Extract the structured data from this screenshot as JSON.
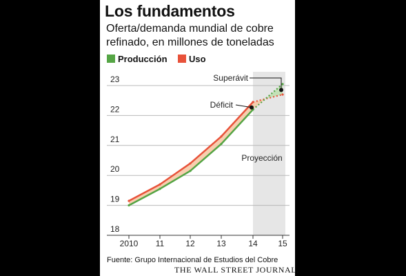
{
  "title": "Los fundamentos",
  "subtitle": "Oferta/demanda mundial de cobre refinado, en millones de toneladas",
  "legend": [
    {
      "label": "Producción",
      "color": "#55a545"
    },
    {
      "label": "Uso",
      "color": "#e8523a"
    }
  ],
  "source": "Fuente: Grupo Internacional de Estudios del Cobre",
  "brand": "THE WALL STREET JOURNAL.",
  "annotations": {
    "surplus": "Superávit",
    "deficit": "Déficit",
    "projection": "Proyección"
  },
  "chart_data": {
    "type": "line",
    "x": [
      "2010",
      "11",
      "12",
      "13",
      "14",
      "15"
    ],
    "series": [
      {
        "name": "Producción",
        "color": "#55a545",
        "values": [
          19.0,
          19.55,
          20.15,
          21.05,
          22.2,
          23.05
        ]
      },
      {
        "name": "Uso",
        "color": "#e8523a",
        "values": [
          19.15,
          19.7,
          20.4,
          21.3,
          22.45,
          22.7
        ]
      }
    ],
    "projected_from": "14",
    "ylim": [
      18,
      23
    ],
    "yticks": [
      18,
      19,
      20,
      21,
      22,
      23
    ],
    "grid": true,
    "legend": "top-left"
  }
}
